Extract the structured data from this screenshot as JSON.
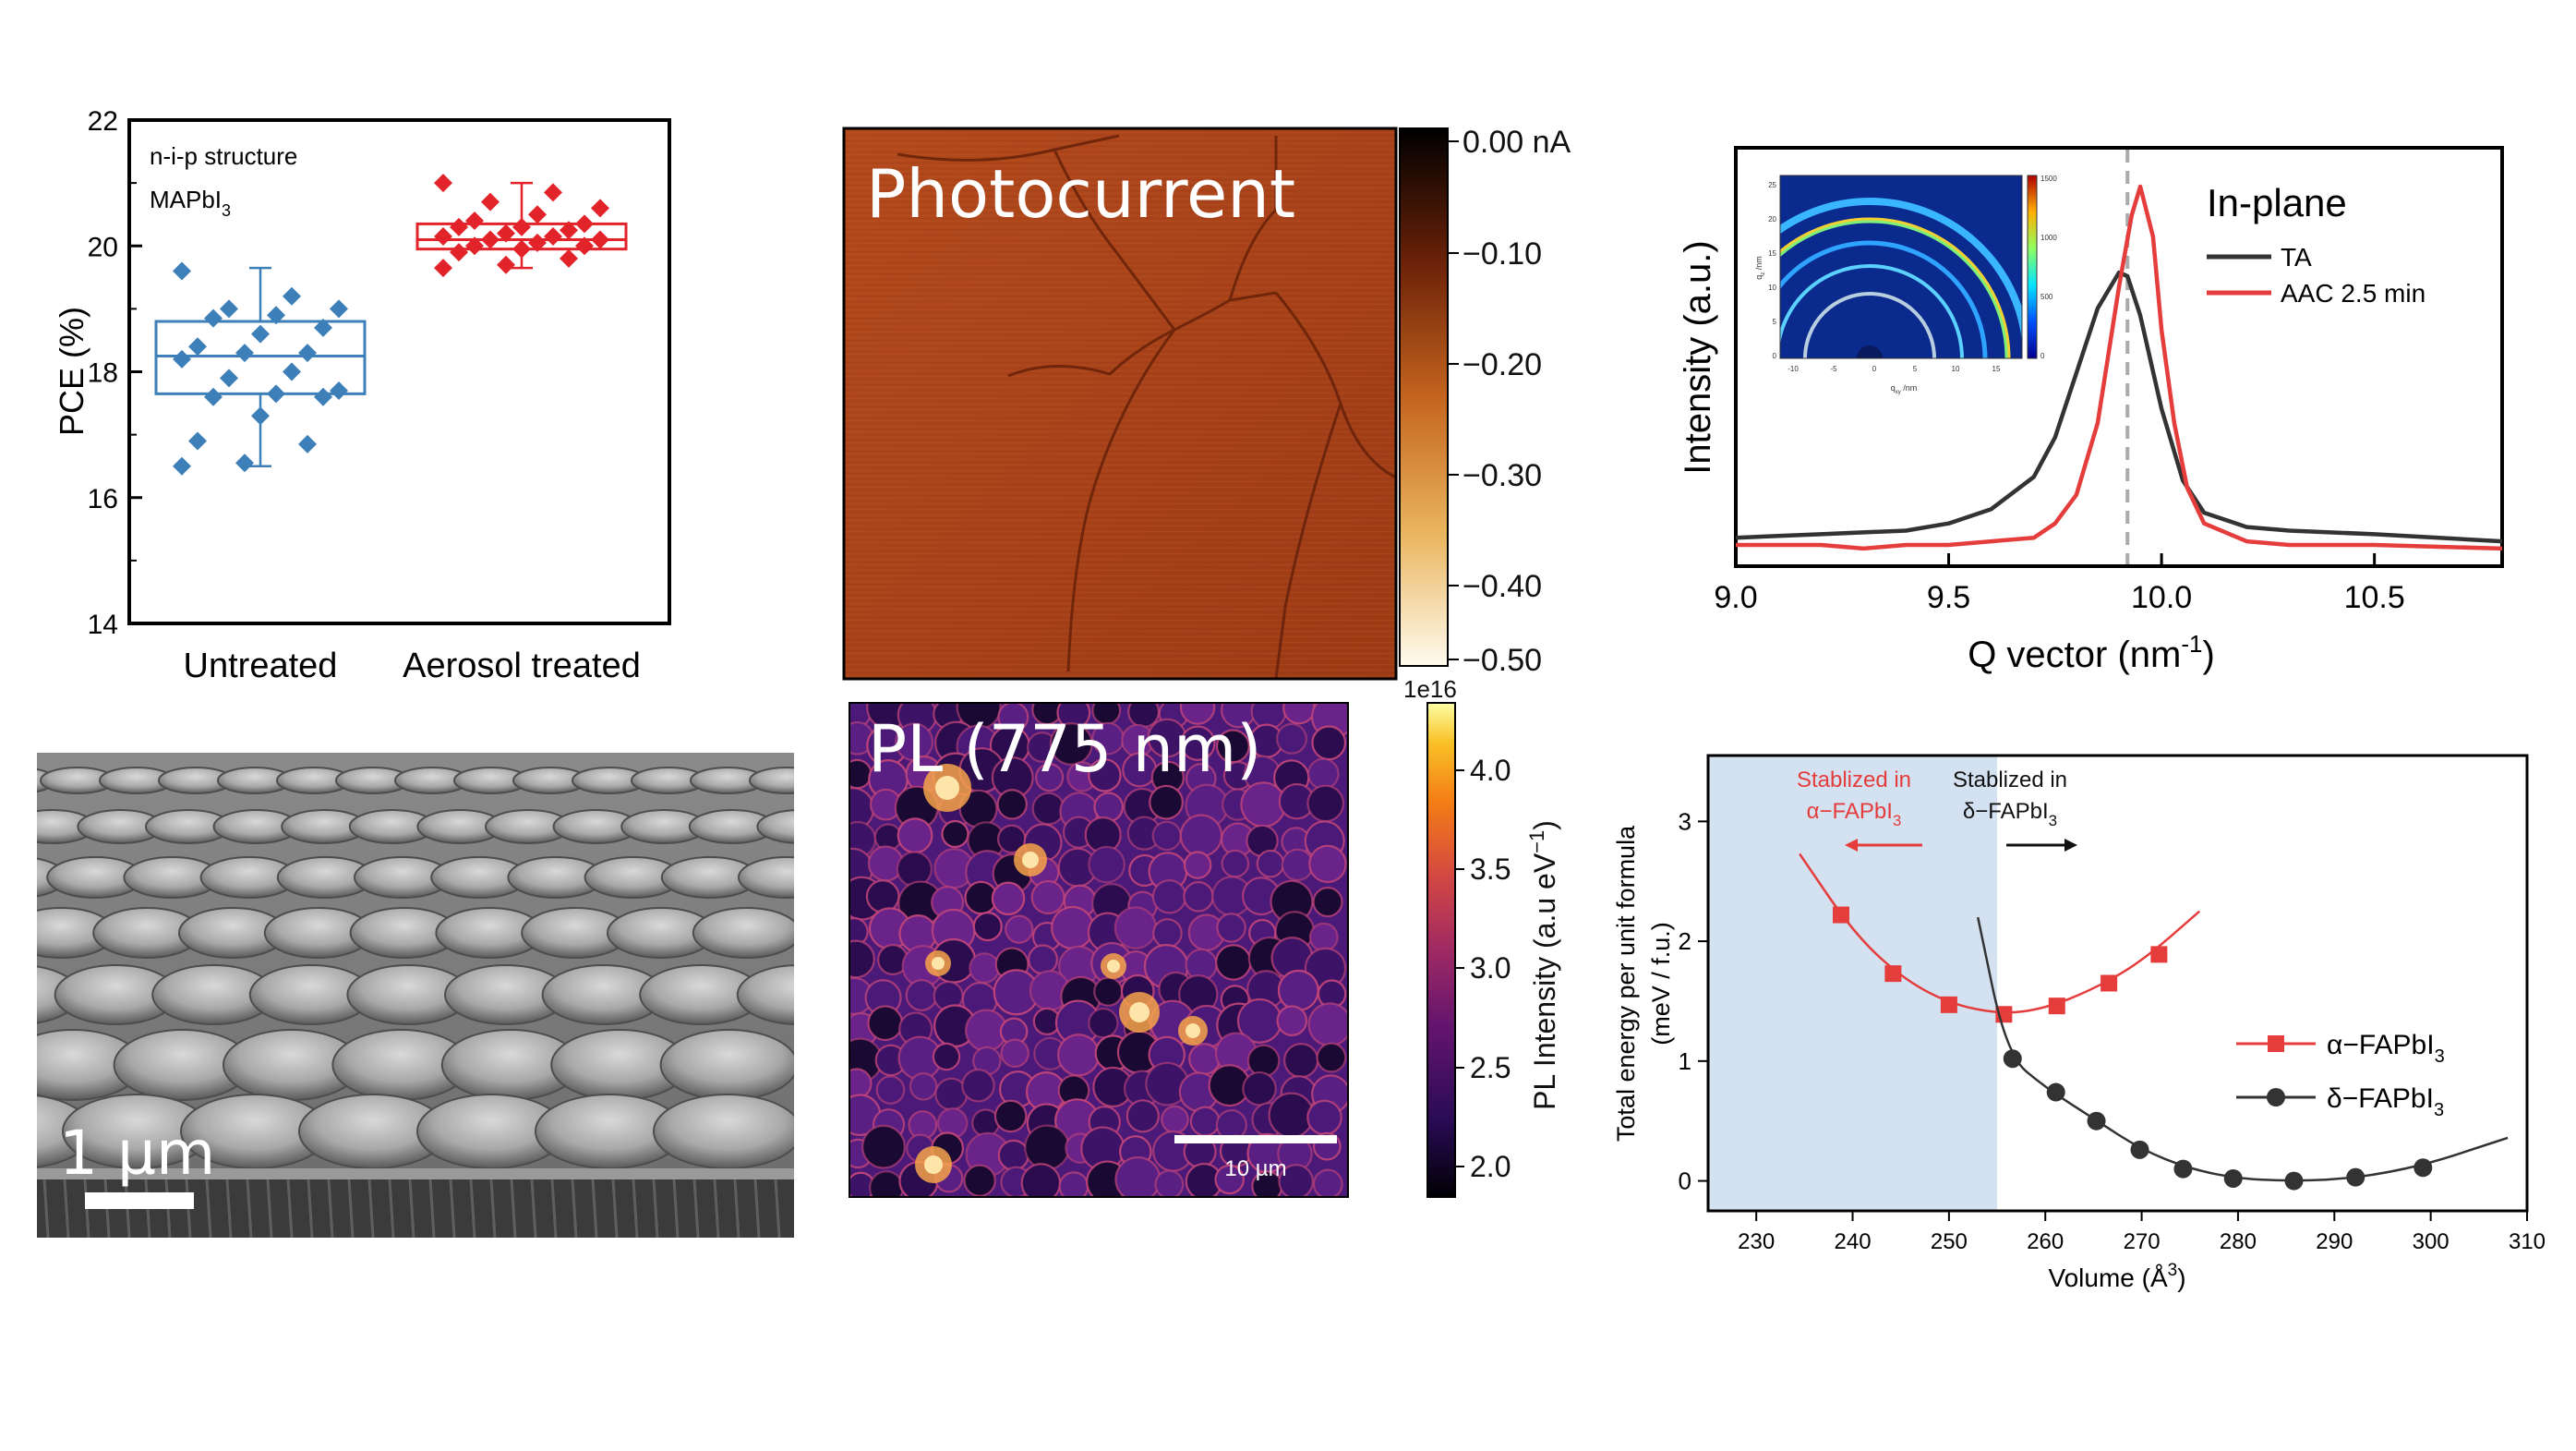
{
  "chart_data": [
    {
      "id": "pce",
      "type": "box",
      "ylabel": "PCE (%)",
      "ylim": [
        14,
        22
      ],
      "yticks": [
        "14",
        "16",
        "18",
        "20",
        "22"
      ],
      "categories": [
        "Untreated",
        "Aerosol treated"
      ],
      "annotations": [
        "n-i-p structure",
        "MAPbI",
        "3"
      ],
      "colors": [
        "#3d7fb8",
        "#e2232a"
      ],
      "series": [
        {
          "name": "Untreated",
          "box": [
            17.65,
            18.25,
            18.8
          ],
          "whiskers": [
            16.5,
            19.65
          ],
          "points": [
            16.5,
            16.55,
            16.85,
            16.9,
            17.3,
            17.6,
            17.6,
            17.65,
            17.7,
            17.9,
            18.0,
            18.2,
            18.3,
            18.3,
            18.4,
            18.6,
            18.7,
            18.85,
            18.9,
            19.0,
            19.0,
            19.2,
            19.6
          ]
        },
        {
          "name": "Aerosol treated",
          "box": [
            19.95,
            20.1,
            20.35
          ],
          "whiskers": [
            19.65,
            21.0
          ],
          "points": [
            19.65,
            19.7,
            19.8,
            19.9,
            19.95,
            20.0,
            20.0,
            20.05,
            20.1,
            20.1,
            20.15,
            20.15,
            20.2,
            20.25,
            20.3,
            20.3,
            20.35,
            20.4,
            20.5,
            20.6,
            20.7,
            20.85,
            21.0
          ]
        }
      ]
    },
    {
      "id": "xrd",
      "type": "line",
      "xlabel": "Q vector (nm",
      "xlabel_sup": "-1",
      "xlabel_end": ")",
      "ylabel": "Intensity (a.u.)",
      "xlim": [
        9.0,
        10.8
      ],
      "xticks": [
        "9.0",
        "9.5",
        "10.0",
        "10.5"
      ],
      "legend_title": "In-plane",
      "legend_position": "top-right",
      "reference_line": 9.92,
      "series": [
        {
          "name": "TA",
          "color": "#333333",
          "x": [
            9.0,
            9.1,
            9.2,
            9.3,
            9.4,
            9.5,
            9.6,
            9.7,
            9.75,
            9.8,
            9.85,
            9.9,
            9.92,
            9.95,
            10.0,
            10.05,
            10.1,
            10.2,
            10.3,
            10.5,
            10.8
          ],
          "y": [
            0.02,
            0.025,
            0.03,
            0.035,
            0.04,
            0.06,
            0.1,
            0.19,
            0.3,
            0.48,
            0.66,
            0.76,
            0.75,
            0.64,
            0.38,
            0.18,
            0.09,
            0.05,
            0.04,
            0.03,
            0.01
          ]
        },
        {
          "name": "AAC 2.5 min",
          "color": "#e53c3c",
          "x": [
            9.0,
            9.1,
            9.2,
            9.3,
            9.4,
            9.5,
            9.6,
            9.7,
            9.75,
            9.8,
            9.85,
            9.9,
            9.93,
            9.95,
            9.98,
            10.0,
            10.03,
            10.06,
            10.1,
            10.2,
            10.3,
            10.5,
            10.8
          ],
          "y": [
            0.0,
            0.0,
            0.0,
            -0.01,
            0.0,
            0.0,
            0.01,
            0.02,
            0.06,
            0.14,
            0.34,
            0.72,
            0.92,
            1.0,
            0.86,
            0.6,
            0.34,
            0.16,
            0.06,
            0.01,
            0.0,
            0.0,
            -0.01
          ]
        }
      ]
    },
    {
      "id": "xrd-inset",
      "type": "heatmap",
      "xlabel": "q",
      "xlabel_sub": "xy",
      "xlabel_unit": " /nm",
      "ylabel": "q",
      "ylabel_sub": "z",
      "ylabel_unit": " /nm",
      "xticks": [
        "-10",
        "-5",
        "0",
        "5",
        "10",
        "15"
      ],
      "yticks": [
        "0",
        "5",
        "10",
        "15",
        "20",
        "25"
      ],
      "colorbar_ticks": [
        "1500",
        "1000",
        "500",
        "0"
      ]
    },
    {
      "id": "energy",
      "type": "scatter",
      "xlabel": "Volume (Å",
      "xlabel_sup": "3",
      "xlabel_end": ")",
      "ylabel_line1": "Total energy per unit formula",
      "ylabel_line2": "(meV / f.u.)",
      "xlim": [
        225,
        310
      ],
      "ylim": [
        -0.25,
        3.55
      ],
      "xticks": [
        "230",
        "240",
        "250",
        "260",
        "270",
        "280",
        "290",
        "300",
        "310"
      ],
      "yticks": [
        "0",
        "1",
        "2",
        "3"
      ],
      "shaded_region_x": [
        225,
        255
      ],
      "annotations": {
        "left_line1": "Stablized in",
        "left_line2": "α−FAPbI",
        "left_sub": "3",
        "right_line1": "Stablized in",
        "right_line2": "δ−FAPbI",
        "right_sub": "3"
      },
      "series": [
        {
          "name": "α−FAPbI",
          "name_sub": "3",
          "color": "#e53c3c",
          "marker": "square",
          "x": [
            238.8,
            244.2,
            250.0,
            255.7,
            261.2,
            266.6,
            271.8
          ],
          "y": [
            2.22,
            1.73,
            1.47,
            1.39,
            1.46,
            1.65,
            1.89
          ],
          "curve_x": [
            234.5,
            240,
            245,
            250,
            255.5,
            260,
            265,
            270,
            276
          ],
          "curve_y": [
            2.73,
            2.08,
            1.7,
            1.48,
            1.39,
            1.44,
            1.6,
            1.83,
            2.25
          ]
        },
        {
          "name": "δ−FAPbI",
          "name_sub": "3",
          "color": "#333333",
          "marker": "circle",
          "x": [
            256.6,
            261.1,
            265.3,
            269.8,
            274.3,
            279.5,
            285.8,
            292.2,
            299.2
          ],
          "y": [
            1.02,
            0.74,
            0.5,
            0.26,
            0.1,
            0.02,
            0.0,
            0.03,
            0.11
          ],
          "curve_x": [
            253,
            256,
            260,
            265,
            270,
            275,
            280,
            285,
            290,
            295,
            300,
            305,
            308
          ],
          "curve_y": [
            2.2,
            1.05,
            0.78,
            0.52,
            0.26,
            0.1,
            0.02,
            0.0,
            0.01,
            0.06,
            0.15,
            0.28,
            0.36
          ]
        }
      ]
    }
  ],
  "images": {
    "sem": {
      "scale_label": "1 µm"
    },
    "photocurrent": {
      "title": "Photocurrent",
      "colorbar_ticks": [
        "0.00 nA",
        "−0.10",
        "−0.20",
        "−0.30",
        "−0.40",
        "−0.50"
      ]
    },
    "pl": {
      "title": "PL (775 nm)",
      "scale_label": "10 µm",
      "colorbar_offset": "1e16",
      "colorbar_label": "PL Intensity (a.u eV",
      "colorbar_label_sup": "−1",
      "colorbar_label_end": ")",
      "colorbar_ticks": [
        "4.0",
        "3.5",
        "3.0",
        "2.5",
        "2.0"
      ]
    }
  }
}
